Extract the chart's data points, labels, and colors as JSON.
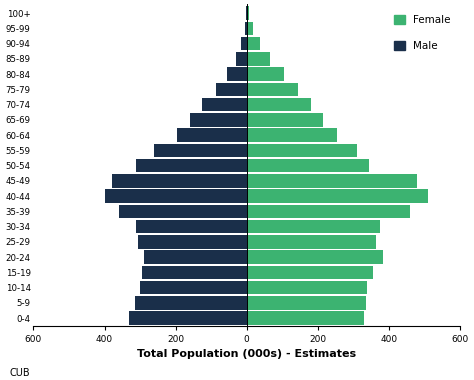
{
  "age_groups": [
    "0-4",
    "5-9",
    "10-14",
    "15-19",
    "20-24",
    "25-29",
    "30-34",
    "35-39",
    "40-44",
    "45-49",
    "50-54",
    "55-59",
    "60-64",
    "65-69",
    "70-74",
    "75-79",
    "80-84",
    "85-89",
    "90-94",
    "95-99",
    "100+"
  ],
  "male": [
    330,
    315,
    300,
    295,
    290,
    305,
    310,
    360,
    400,
    380,
    310,
    260,
    195,
    160,
    125,
    85,
    55,
    30,
    15,
    5,
    2
  ],
  "female": [
    330,
    335,
    340,
    355,
    385,
    365,
    375,
    460,
    510,
    480,
    345,
    310,
    255,
    215,
    180,
    145,
    105,
    65,
    38,
    18,
    8
  ],
  "male_color": "#1a2f4a",
  "female_color": "#3cb371",
  "background_color": "#ffffff",
  "xlabel": "Total Population (000s) - Estimates",
  "xlim": 600,
  "watermark": "CUB"
}
